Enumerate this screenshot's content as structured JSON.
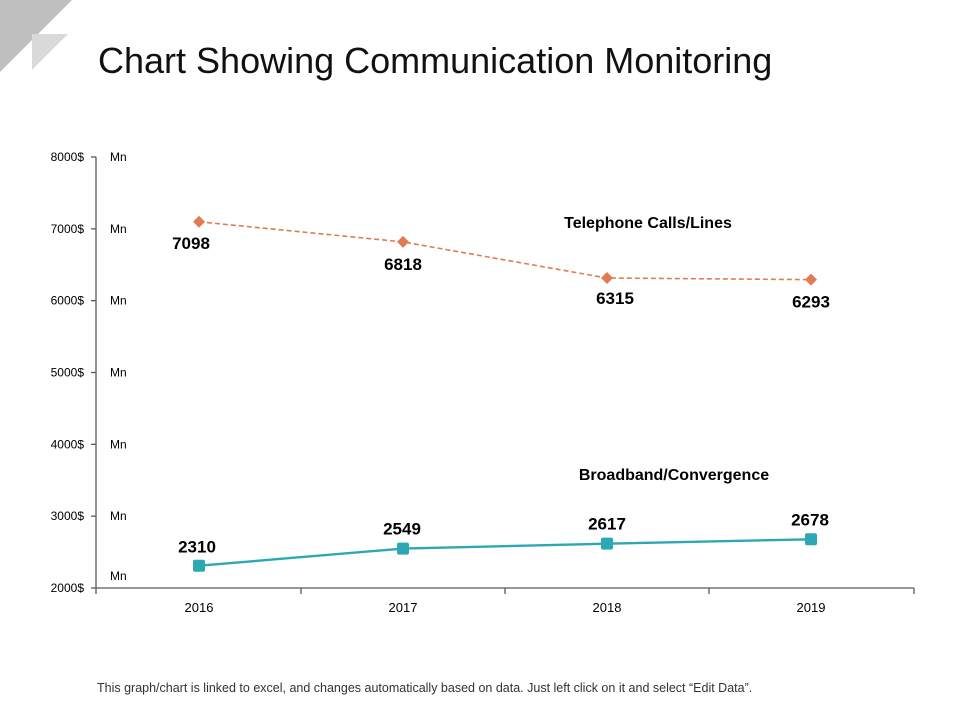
{
  "title": "Chart Showing Communication Monitoring",
  "footnote": "This graph/chart is linked to excel, and changes automatically based on data.  Just left click on it and select “Edit Data”.",
  "colors": {
    "telephone": "#E07B54",
    "broadband": "#2BA8B4",
    "axis": "#595959",
    "corner_deco": "#BFBFBF"
  },
  "chart_data": {
    "type": "line",
    "title": "",
    "xlabel": "",
    "ylabel": "",
    "categories": [
      "2016",
      "2017",
      "2018",
      "2019"
    ],
    "ylim": [
      2000,
      8000
    ],
    "y_ticks": [
      2000,
      3000,
      4000,
      5000,
      6000,
      7000,
      8000
    ],
    "y_tick_labels": [
      "2000$",
      "3000$",
      "4000$",
      "5000$",
      "6000$",
      "7000$",
      "8000$"
    ],
    "y_unit_label": "Mn",
    "grid": false,
    "series": [
      {
        "name": "Telephone Calls/Lines",
        "values": [
          7098,
          6818,
          6315,
          6293
        ],
        "line_style": "dashed",
        "marker": "diamond",
        "color": "#E07B54"
      },
      {
        "name": "Broadband/Convergence",
        "values": [
          2310,
          2549,
          2617,
          2678
        ],
        "line_style": "solid",
        "marker": "square",
        "color": "#2BA8B4"
      }
    ]
  }
}
